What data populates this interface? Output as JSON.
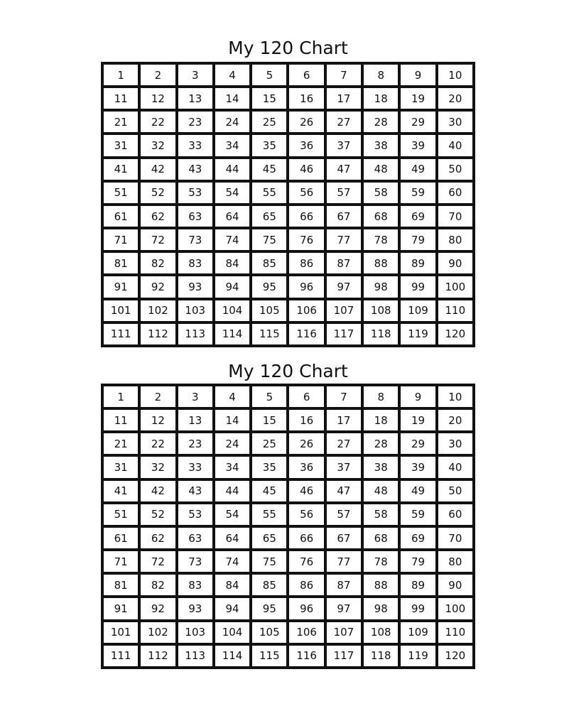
{
  "charts": [
    {
      "title": "My 120 Chart",
      "start": 1,
      "end": 120,
      "columns": 10
    },
    {
      "title": "My 120 Chart",
      "start": 1,
      "end": 120,
      "columns": 10
    }
  ]
}
